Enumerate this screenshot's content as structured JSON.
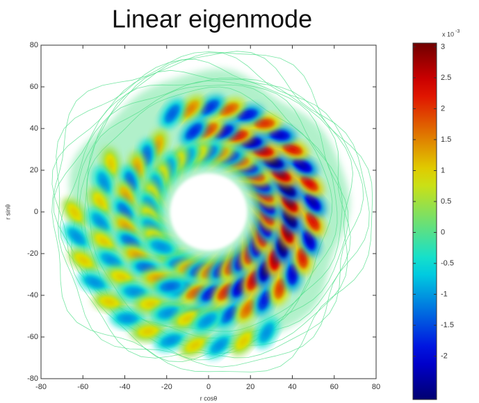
{
  "chart_data": {
    "type": "contour",
    "title": "Linear eigenmode",
    "xlabel": "r cosθ",
    "ylabel": "r sinθ",
    "xlim": [
      -80,
      80
    ],
    "ylim": [
      -80,
      80
    ],
    "xticks": [
      -80,
      -60,
      -40,
      -20,
      0,
      20,
      40,
      60,
      80
    ],
    "yticks": [
      -80,
      -60,
      -40,
      -20,
      0,
      20,
      40,
      60,
      80
    ],
    "colormap": "jet",
    "colorbar": {
      "clim": [
        -2.7,
        3.06
      ],
      "ticks": [
        -2,
        -1.5,
        -1,
        -0.5,
        0,
        0.5,
        1,
        1.5,
        2,
        2.5,
        3
      ],
      "multiplier": "x 10",
      "multiplier_exponent": "-3"
    }
  }
}
